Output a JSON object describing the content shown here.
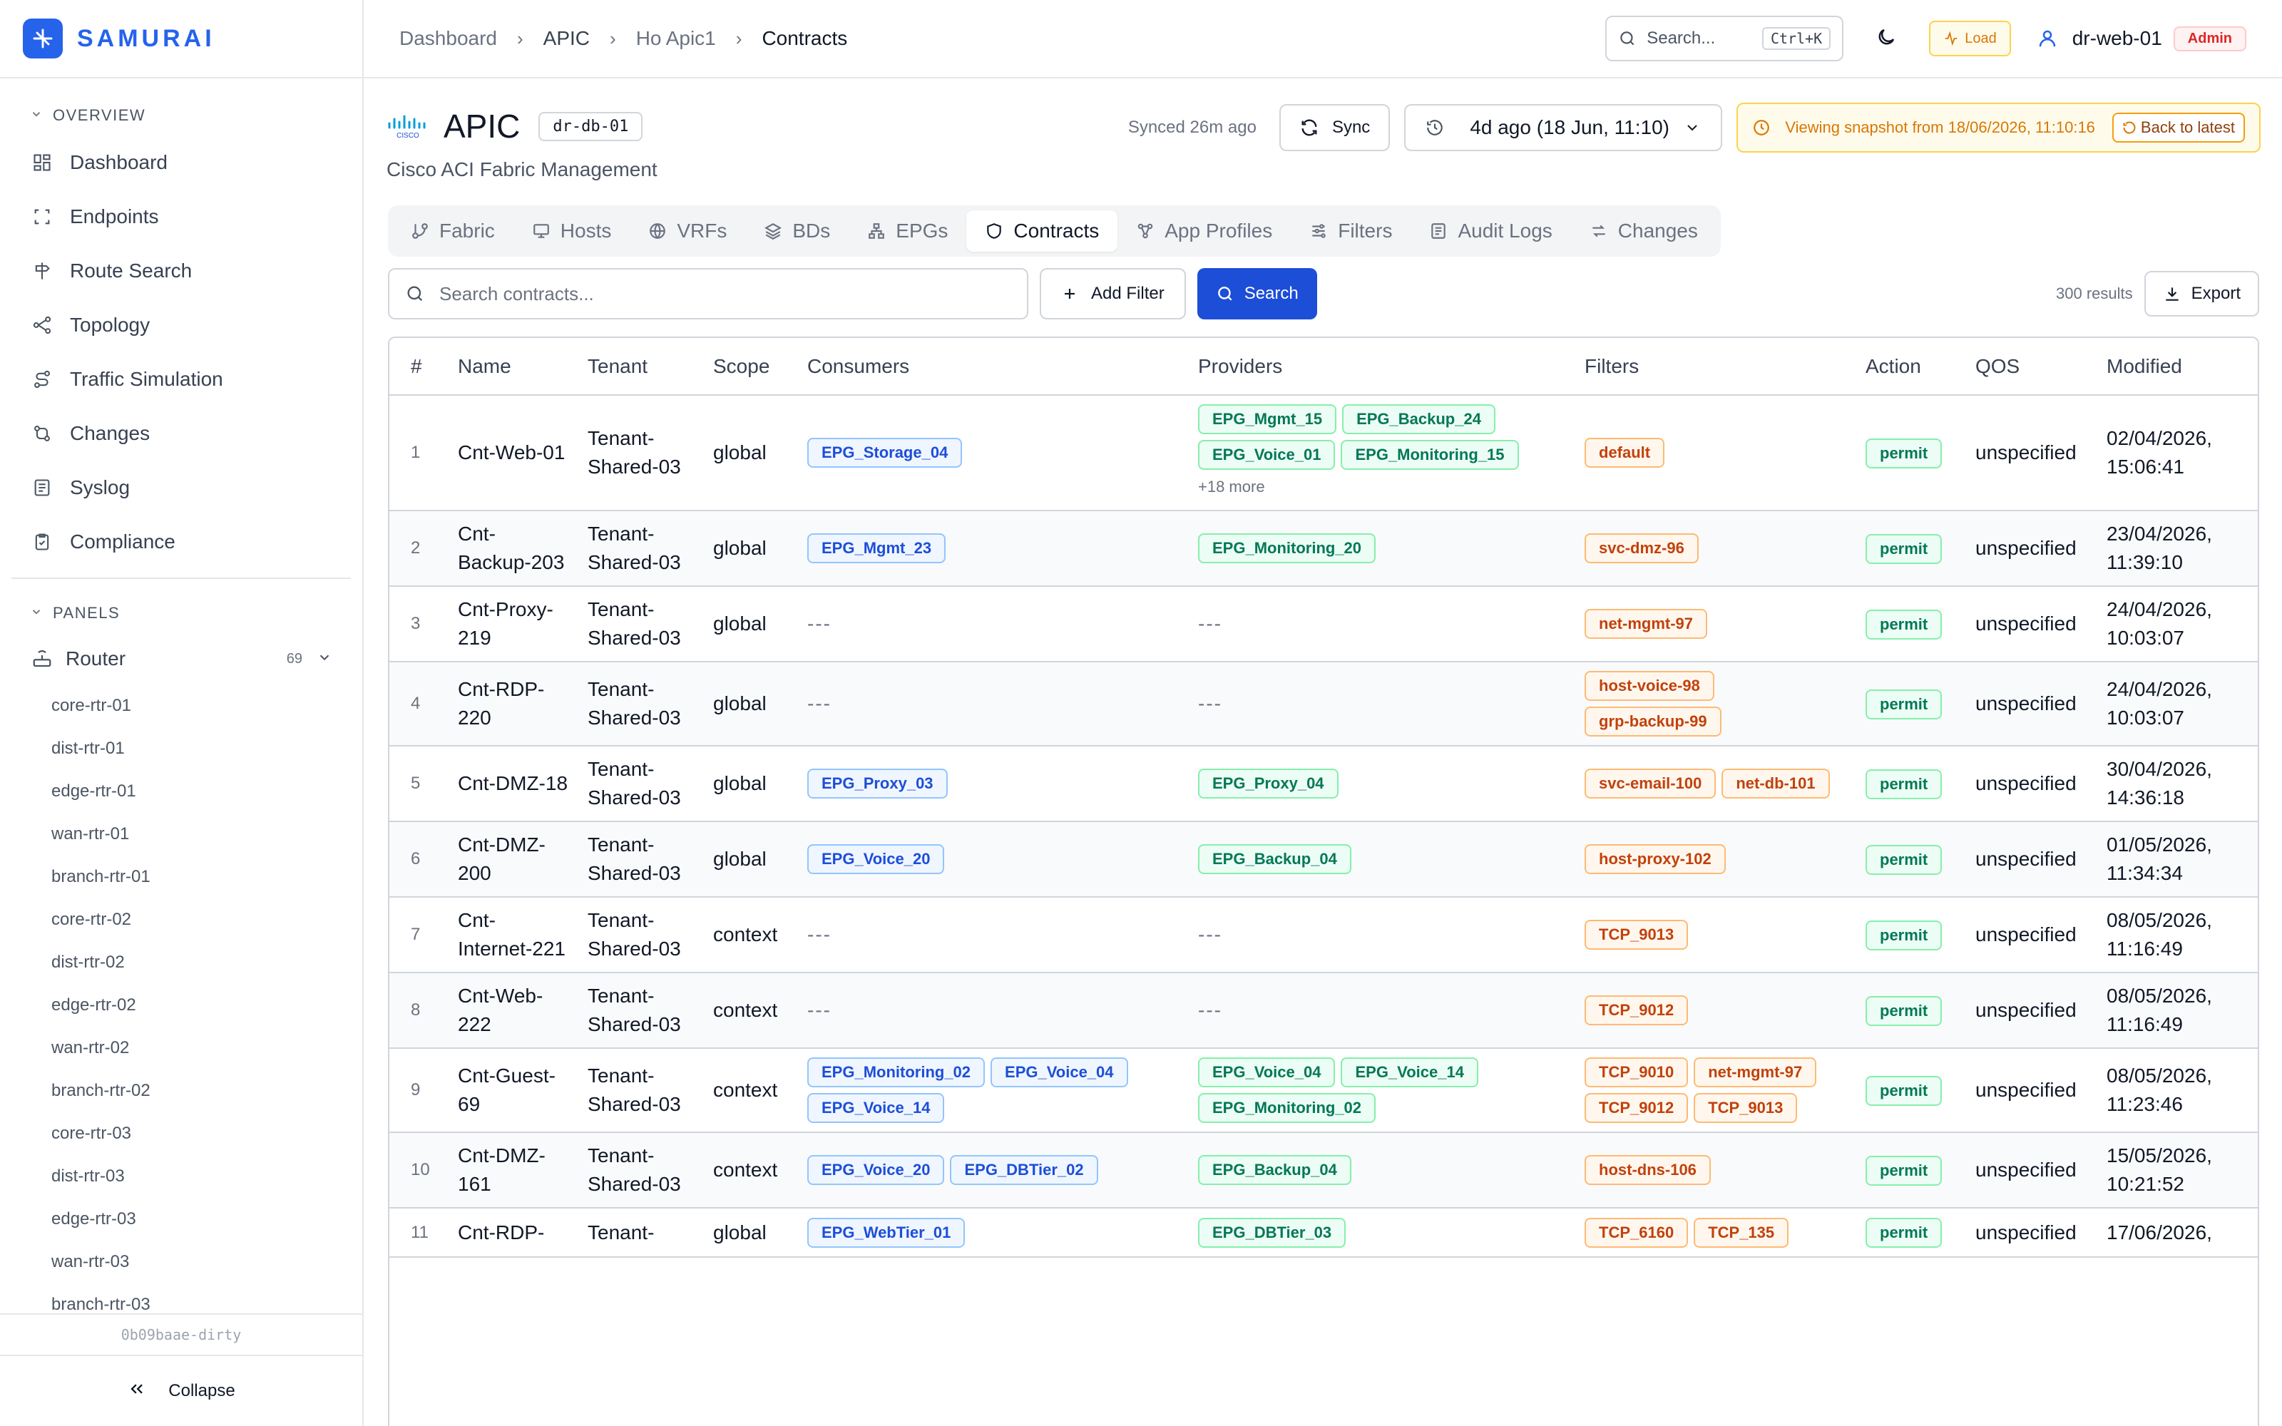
{
  "brand": {
    "name": "SAMURAI"
  },
  "colors": {
    "accent": "#2563eb",
    "primary_button": "#1d4ed8",
    "warning": "#d97706",
    "danger": "#dc2626"
  },
  "sidebar": {
    "overview_label": "OVERVIEW",
    "items": [
      {
        "label": "Dashboard",
        "icon": "dashboard-icon"
      },
      {
        "label": "Endpoints",
        "icon": "endpoints-icon"
      },
      {
        "label": "Route Search",
        "icon": "route-search-icon"
      },
      {
        "label": "Topology",
        "icon": "topology-icon"
      },
      {
        "label": "Traffic Simulation",
        "icon": "traffic-icon"
      },
      {
        "label": "Changes",
        "icon": "changes-icon"
      },
      {
        "label": "Syslog",
        "icon": "syslog-icon"
      },
      {
        "label": "Compliance",
        "icon": "compliance-icon"
      }
    ],
    "panels_label": "PANELS",
    "router": {
      "label": "Router",
      "count": "69"
    },
    "routers": [
      "core-rtr-01",
      "dist-rtr-01",
      "edge-rtr-01",
      "wan-rtr-01",
      "branch-rtr-01",
      "core-rtr-02",
      "dist-rtr-02",
      "edge-rtr-02",
      "wan-rtr-02",
      "branch-rtr-02",
      "core-rtr-03",
      "dist-rtr-03",
      "edge-rtr-03",
      "wan-rtr-03",
      "branch-rtr-03"
    ],
    "version": "0b09baae-dirty",
    "collapse_label": "Collapse"
  },
  "breadcrumb": [
    "Dashboard",
    "APIC",
    "Ho Apic1",
    "Contracts"
  ],
  "header": {
    "search_placeholder": "Search...",
    "search_shortcut": "Ctrl+K",
    "load_label": "Load",
    "user": "dr-web-01",
    "role": "Admin"
  },
  "page": {
    "title": "APIC",
    "device_chip": "dr-db-01",
    "subtitle": "Cisco ACI Fabric Management",
    "logo_text": "CISCO",
    "synced": "Synced 26m ago",
    "sync_label": "Sync",
    "time_selection": "4d ago (18 Jun, 11:10)",
    "snapshot_notice": "Viewing snapshot from 18/06/2026, 11:10:16",
    "back_label": "Back to latest"
  },
  "tabs": [
    {
      "label": "Fabric",
      "icon": "fabric-icon"
    },
    {
      "label": "Hosts",
      "icon": "hosts-icon"
    },
    {
      "label": "VRFs",
      "icon": "vrfs-icon"
    },
    {
      "label": "BDs",
      "icon": "bds-icon"
    },
    {
      "label": "EPGs",
      "icon": "epgs-icon"
    },
    {
      "label": "Contracts",
      "icon": "contracts-icon",
      "active": true
    },
    {
      "label": "App Profiles",
      "icon": "app-profiles-icon"
    },
    {
      "label": "Filters",
      "icon": "filters-icon"
    },
    {
      "label": "Audit Logs",
      "icon": "audit-logs-icon"
    },
    {
      "label": "Changes",
      "icon": "changes-icon"
    }
  ],
  "filter_bar": {
    "search_placeholder": "Search contracts...",
    "add_filter_label": "Add Filter",
    "search_label": "Search",
    "results": "300 results",
    "export_label": "Export"
  },
  "table": {
    "columns": [
      "#",
      "Name",
      "Tenant",
      "Scope",
      "Consumers",
      "Providers",
      "Filters",
      "Action",
      "QOS",
      "Modified"
    ],
    "empty": "---",
    "rows": [
      {
        "n": "1",
        "name": "Cnt-Web-01",
        "tenant": "Tenant-Shared-03",
        "scope": "global",
        "consumers": [
          "EPG_Storage_04"
        ],
        "providers": [
          "EPG_Mgmt_15",
          "EPG_Backup_24",
          "EPG_Voice_01",
          "EPG_Monitoring_15"
        ],
        "providers_more": "+18 more",
        "filters": [
          "default"
        ],
        "action": "permit",
        "qos": "unspecified",
        "modified": "02/04/2026, 15:06:41"
      },
      {
        "n": "2",
        "name": "Cnt-Backup-203",
        "tenant": "Tenant-Shared-03",
        "scope": "global",
        "consumers": [
          "EPG_Mgmt_23"
        ],
        "providers": [
          "EPG_Monitoring_20"
        ],
        "filters": [
          "svc-dmz-96"
        ],
        "action": "permit",
        "qos": "unspecified",
        "modified": "23/04/2026, 11:39:10"
      },
      {
        "n": "3",
        "name": "Cnt-Proxy-219",
        "tenant": "Tenant-Shared-03",
        "scope": "global",
        "consumers": [],
        "providers": [],
        "filters": [
          "net-mgmt-97"
        ],
        "action": "permit",
        "qos": "unspecified",
        "modified": "24/04/2026, 10:03:07"
      },
      {
        "n": "4",
        "name": "Cnt-RDP-220",
        "tenant": "Tenant-Shared-03",
        "scope": "global",
        "consumers": [],
        "providers": [],
        "filters": [
          "host-voice-98",
          "grp-backup-99"
        ],
        "action": "permit",
        "qos": "unspecified",
        "modified": "24/04/2026, 10:03:07"
      },
      {
        "n": "5",
        "name": "Cnt-DMZ-18",
        "tenant": "Tenant-Shared-03",
        "scope": "global",
        "consumers": [
          "EPG_Proxy_03"
        ],
        "providers": [
          "EPG_Proxy_04"
        ],
        "filters": [
          "svc-email-100",
          "net-db-101"
        ],
        "action": "permit",
        "qos": "unspecified",
        "modified": "30/04/2026, 14:36:18"
      },
      {
        "n": "6",
        "name": "Cnt-DMZ-200",
        "tenant": "Tenant-Shared-03",
        "scope": "global",
        "consumers": [
          "EPG_Voice_20"
        ],
        "providers": [
          "EPG_Backup_04"
        ],
        "filters": [
          "host-proxy-102"
        ],
        "action": "permit",
        "qos": "unspecified",
        "modified": "01/05/2026, 11:34:34"
      },
      {
        "n": "7",
        "name": "Cnt-Internet-221",
        "tenant": "Tenant-Shared-03",
        "scope": "context",
        "consumers": [],
        "providers": [],
        "filters": [
          "TCP_9013"
        ],
        "action": "permit",
        "qos": "unspecified",
        "modified": "08/05/2026, 11:16:49"
      },
      {
        "n": "8",
        "name": "Cnt-Web-222",
        "tenant": "Tenant-Shared-03",
        "scope": "context",
        "consumers": [],
        "providers": [],
        "filters": [
          "TCP_9012"
        ],
        "action": "permit",
        "qos": "unspecified",
        "modified": "08/05/2026, 11:16:49"
      },
      {
        "n": "9",
        "name": "Cnt-Guest-69",
        "tenant": "Tenant-Shared-03",
        "scope": "context",
        "consumers": [
          "EPG_Monitoring_02",
          "EPG_Voice_04",
          "EPG_Voice_14"
        ],
        "providers": [
          "EPG_Voice_04",
          "EPG_Voice_14",
          "EPG_Monitoring_02"
        ],
        "filters": [
          "TCP_9010",
          "net-mgmt-97",
          "TCP_9012",
          "TCP_9013"
        ],
        "action": "permit",
        "qos": "unspecified",
        "modified": "08/05/2026, 11:23:46"
      },
      {
        "n": "10",
        "name": "Cnt-DMZ-161",
        "tenant": "Tenant-Shared-03",
        "scope": "context",
        "consumers": [
          "EPG_Voice_20",
          "EPG_DBTier_02"
        ],
        "providers": [
          "EPG_Backup_04"
        ],
        "filters": [
          "host-dns-106"
        ],
        "action": "permit",
        "qos": "unspecified",
        "modified": "15/05/2026, 10:21:52"
      },
      {
        "n": "11",
        "name": "Cnt-RDP-",
        "tenant": "Tenant-",
        "scope": "global",
        "consumers": [
          "EPG_WebTier_01"
        ],
        "providers": [
          "EPG_DBTier_03"
        ],
        "filters": [
          "TCP_6160",
          "TCP_135"
        ],
        "action": "permit",
        "qos": "unspecified",
        "modified": "17/06/2026,"
      }
    ]
  }
}
